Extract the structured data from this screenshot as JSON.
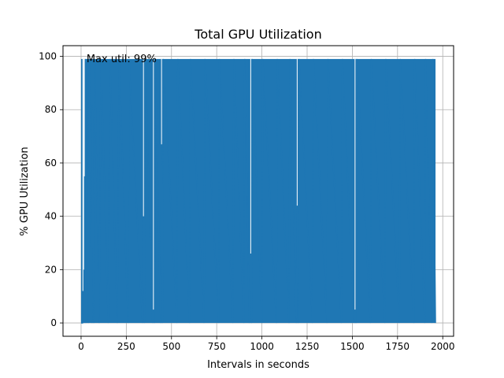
{
  "chart_data": {
    "type": "line",
    "title": "Total GPU Utilization",
    "xlabel": "Intervals in seconds",
    "ylabel": "% GPU Utilization",
    "xlim": [
      -100,
      2060
    ],
    "ylim": [
      -5,
      104
    ],
    "xticks": [
      0,
      250,
      500,
      750,
      1000,
      1250,
      1500,
      1750,
      2000
    ],
    "yticks": [
      0,
      20,
      40,
      60,
      80,
      100
    ],
    "grid": true,
    "annotation": {
      "text": "Max util: 99%",
      "x": 30,
      "y": 99
    },
    "series": [
      {
        "color": "#1f77b4",
        "x_start": 0,
        "x_end": 1960,
        "max": 99,
        "min": 0,
        "points": [
          [
            0,
            0
          ],
          [
            8,
            0
          ],
          [
            10,
            12
          ],
          [
            12,
            0
          ],
          [
            14,
            20
          ],
          [
            16,
            0
          ],
          [
            18,
            55
          ],
          [
            20,
            0
          ],
          [
            22,
            80
          ],
          [
            24,
            0
          ],
          [
            26,
            99
          ],
          [
            28,
            0
          ],
          [
            30,
            99
          ],
          [
            40,
            0
          ],
          [
            45,
            99
          ],
          [
            60,
            0
          ],
          [
            62,
            82
          ],
          [
            70,
            0
          ],
          [
            75,
            99
          ],
          [
            100,
            0
          ],
          [
            110,
            99
          ],
          [
            150,
            0
          ],
          [
            160,
            99
          ],
          [
            200,
            0
          ],
          [
            210,
            99
          ],
          [
            260,
            0
          ],
          [
            265,
            99
          ],
          [
            340,
            0
          ],
          [
            345,
            40
          ],
          [
            350,
            0
          ],
          [
            355,
            99
          ],
          [
            395,
            0
          ],
          [
            400,
            5
          ],
          [
            405,
            0
          ],
          [
            410,
            99
          ],
          [
            440,
            0
          ],
          [
            445,
            67
          ],
          [
            450,
            0
          ],
          [
            455,
            99
          ],
          [
            530,
            0
          ],
          [
            535,
            99
          ],
          [
            600,
            0
          ],
          [
            605,
            99
          ],
          [
            680,
            0
          ],
          [
            685,
            99
          ],
          [
            760,
            0
          ],
          [
            765,
            99
          ],
          [
            840,
            0
          ],
          [
            845,
            99
          ],
          [
            900,
            0
          ],
          [
            905,
            99
          ],
          [
            930,
            0
          ],
          [
            938,
            26
          ],
          [
            942,
            0
          ],
          [
            946,
            99
          ],
          [
            1000,
            0
          ],
          [
            1005,
            99
          ],
          [
            1080,
            0
          ],
          [
            1085,
            99
          ],
          [
            1150,
            0
          ],
          [
            1155,
            99
          ],
          [
            1190,
            0
          ],
          [
            1195,
            44
          ],
          [
            1200,
            0
          ],
          [
            1205,
            99
          ],
          [
            1280,
            0
          ],
          [
            1285,
            99
          ],
          [
            1360,
            0
          ],
          [
            1365,
            99
          ],
          [
            1440,
            0
          ],
          [
            1445,
            99
          ],
          [
            1510,
            0
          ],
          [
            1515,
            5
          ],
          [
            1520,
            0
          ],
          [
            1525,
            99
          ],
          [
            1600,
            0
          ],
          [
            1605,
            99
          ],
          [
            1680,
            0
          ],
          [
            1685,
            99
          ],
          [
            1760,
            0
          ],
          [
            1765,
            99
          ],
          [
            1840,
            0
          ],
          [
            1845,
            99
          ],
          [
            1900,
            0
          ],
          [
            1905,
            99
          ],
          [
            1940,
            0
          ],
          [
            1945,
            99
          ],
          [
            1960,
            0
          ]
        ]
      }
    ]
  }
}
